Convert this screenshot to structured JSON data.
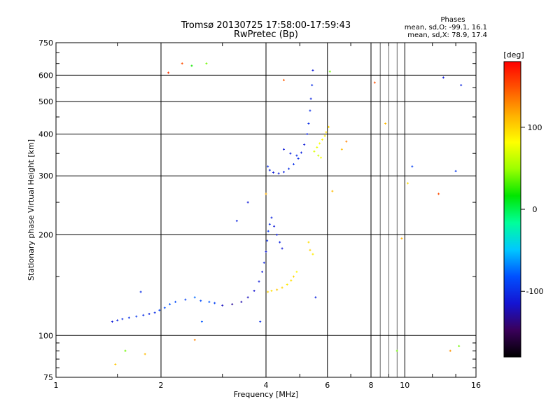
{
  "chart_data": {
    "type": "scatter",
    "title": "Tromsø 20130725 17:58:00-17:59:43",
    "subtitle": "RwPretec (Bp)",
    "xlabel": "Frequency [MHz]",
    "ylabel": "Stationary phase Virtual Height [km]",
    "xscale": "log",
    "yscale": "log",
    "xlim": [
      1,
      16
    ],
    "ylim": [
      75,
      750
    ],
    "x_ticks": [
      "1",
      "2",
      "4",
      "6",
      "8",
      "10",
      "16"
    ],
    "x_tick_values": [
      1,
      2,
      4,
      6,
      8,
      10,
      16
    ],
    "y_ticks": [
      "75",
      "100",
      "200",
      "300",
      "400",
      "500",
      "600",
      "750"
    ],
    "y_tick_values": [
      75,
      100,
      200,
      300,
      400,
      500,
      600,
      750
    ],
    "grid": true,
    "stats": {
      "heading": "Phases",
      "line1": "mean, sd,O: -99.1, 16.1",
      "line2": "mean, sd,X:  78.9, 17.4"
    },
    "colorbar": {
      "label": "[deg]",
      "range": [
        -180,
        180
      ],
      "ticks": [
        "100",
        "0",
        "-100"
      ],
      "tick_values": [
        100,
        0,
        -100
      ],
      "colors": [
        "#000000",
        "#3a005a",
        "#1414d2",
        "#0050ff",
        "#00c8ff",
        "#00ff9a",
        "#00e600",
        "#9bff00",
        "#ffff00",
        "#ffb000",
        "#ff5500",
        "#ff0000"
      ]
    },
    "series": [
      {
        "mode": "O",
        "points": [
          [
            1.45,
            110,
            -110
          ],
          [
            1.5,
            111,
            -105
          ],
          [
            1.55,
            112,
            -100
          ],
          [
            1.62,
            113,
            -98
          ],
          [
            1.7,
            114,
            -95
          ],
          [
            1.78,
            115,
            -100
          ],
          [
            1.85,
            116,
            -105
          ],
          [
            1.92,
            117,
            -100
          ],
          [
            1.98,
            119,
            -90
          ],
          [
            2.05,
            121,
            -85
          ],
          [
            2.12,
            124,
            -80
          ],
          [
            2.2,
            126,
            -85
          ],
          [
            2.35,
            128,
            -90
          ],
          [
            2.5,
            130,
            -75
          ],
          [
            2.6,
            127,
            -85
          ],
          [
            2.75,
            126,
            -80
          ],
          [
            2.85,
            125,
            -90
          ],
          [
            3.0,
            123,
            -120
          ],
          [
            3.2,
            124,
            -130
          ],
          [
            3.4,
            126,
            -125
          ],
          [
            3.55,
            130,
            -120
          ],
          [
            3.7,
            136,
            -115
          ],
          [
            3.82,
            145,
            -110
          ],
          [
            3.9,
            155,
            -110
          ],
          [
            3.95,
            165,
            -105
          ],
          [
            4.0,
            178,
            -110
          ],
          [
            4.03,
            192,
            -100
          ],
          [
            4.06,
            205,
            -95
          ],
          [
            4.1,
            215,
            -100
          ],
          [
            4.15,
            225,
            -105
          ],
          [
            4.22,
            212,
            -110
          ],
          [
            4.3,
            200,
            -108
          ],
          [
            4.38,
            190,
            -105
          ],
          [
            4.45,
            182,
            -110
          ],
          [
            4.05,
            320,
            -100
          ],
          [
            4.1,
            312,
            -105
          ],
          [
            4.2,
            307,
            -110
          ],
          [
            4.35,
            305,
            -108
          ],
          [
            4.5,
            308,
            -105
          ],
          [
            4.65,
            315,
            -100
          ],
          [
            4.8,
            325,
            -98
          ],
          [
            4.95,
            338,
            -100
          ],
          [
            5.05,
            352,
            -105
          ],
          [
            5.15,
            372,
            -110
          ],
          [
            5.25,
            400,
            -105
          ],
          [
            5.3,
            430,
            -100
          ],
          [
            5.35,
            470,
            -100
          ],
          [
            5.38,
            510,
            -105
          ],
          [
            5.42,
            560,
            -100
          ],
          [
            5.45,
            620,
            -110
          ],
          [
            4.5,
            360,
            -110
          ],
          [
            4.7,
            350,
            -105
          ],
          [
            4.9,
            345,
            -100
          ],
          [
            2.62,
            110,
            -80
          ],
          [
            3.55,
            250,
            -110
          ],
          [
            3.3,
            220,
            -105
          ],
          [
            3.85,
            110,
            -100
          ],
          [
            1.75,
            135,
            -100
          ],
          [
            5.55,
            130,
            -105
          ],
          [
            10.5,
            320,
            -90
          ],
          [
            12.9,
            590,
            -110
          ],
          [
            14.5,
            560,
            -105
          ],
          [
            14.0,
            310,
            -95
          ]
        ]
      },
      {
        "mode": "X",
        "points": [
          [
            4.05,
            135,
            100
          ],
          [
            4.15,
            136,
            95
          ],
          [
            4.3,
            137,
            105
          ],
          [
            4.45,
            139,
            100
          ],
          [
            4.6,
            142,
            90
          ],
          [
            4.72,
            146,
            95
          ],
          [
            4.8,
            150,
            100
          ],
          [
            4.9,
            155,
            85
          ],
          [
            5.5,
            355,
            70
          ],
          [
            5.6,
            365,
            75
          ],
          [
            5.7,
            375,
            80
          ],
          [
            5.8,
            385,
            85
          ],
          [
            5.9,
            395,
            90
          ],
          [
            5.95,
            405,
            95
          ],
          [
            6.05,
            420,
            100
          ],
          [
            5.65,
            345,
            65
          ],
          [
            5.75,
            340,
            80
          ],
          [
            5.3,
            190,
            95
          ],
          [
            5.35,
            180,
            100
          ],
          [
            5.45,
            175,
            90
          ],
          [
            4.0,
            265,
            115
          ],
          [
            4.5,
            580,
            145
          ],
          [
            2.3,
            650,
            150
          ],
          [
            2.1,
            610,
            160
          ],
          [
            2.45,
            640,
            20
          ],
          [
            2.7,
            650,
            40
          ],
          [
            1.58,
            90,
            40
          ],
          [
            1.8,
            88,
            110
          ],
          [
            1.48,
            82,
            105
          ],
          [
            2.5,
            97,
            130
          ],
          [
            6.1,
            615,
            40
          ],
          [
            6.2,
            270,
            110
          ],
          [
            8.2,
            570,
            150
          ],
          [
            8.8,
            430,
            110
          ],
          [
            9.8,
            195,
            115
          ],
          [
            10.2,
            285,
            95
          ],
          [
            12.5,
            265,
            150
          ],
          [
            13.5,
            90,
            125
          ],
          [
            14.3,
            93,
            40
          ],
          [
            9.5,
            90,
            40
          ],
          [
            6.8,
            380,
            130
          ],
          [
            6.6,
            360,
            110
          ]
        ]
      }
    ]
  }
}
